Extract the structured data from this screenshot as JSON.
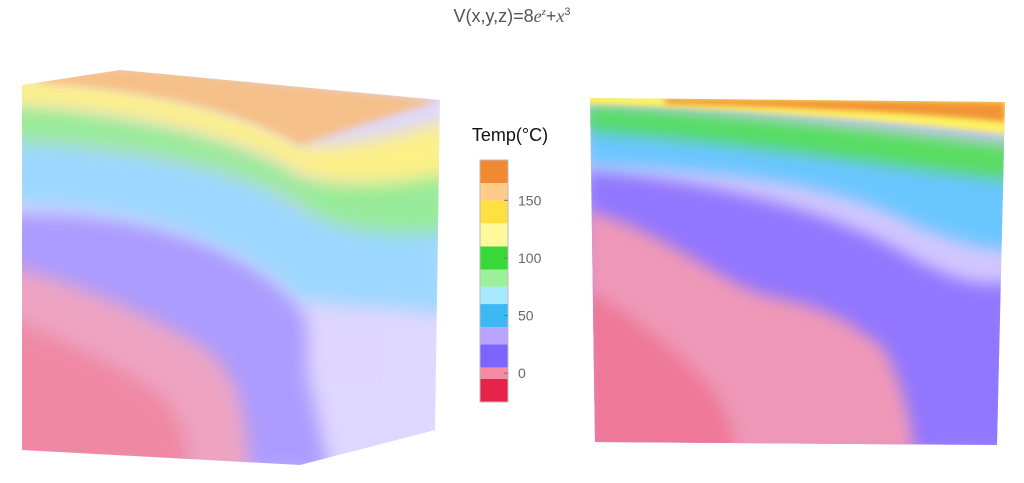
{
  "title": {
    "prefix": "V(x,y,z)=8",
    "base": "e",
    "exp1": "z",
    "mid": "+",
    "var": "x",
    "exp2": "3"
  },
  "chart_data": {
    "type": "heatmap",
    "title": "V(x,y,z)=8e^z+x^3",
    "legend": {
      "title": "Temp(°C)",
      "placement": "center",
      "range": [
        -25,
        185
      ],
      "ticks": [
        0,
        50,
        100,
        150
      ],
      "tick_labels": [
        "0",
        "50",
        "100",
        "150"
      ],
      "color_bands": [
        {
          "from": -25,
          "to": -5,
          "color": "#e8234a"
        },
        {
          "from": -5,
          "to": 5,
          "color": "#f58aa2"
        },
        {
          "from": 5,
          "to": 25,
          "color": "#7d63ff"
        },
        {
          "from": 25,
          "to": 40,
          "color": "#b8a3ff"
        },
        {
          "from": 40,
          "to": 60,
          "color": "#3cb8f5"
        },
        {
          "from": 60,
          "to": 75,
          "color": "#a7e8ff"
        },
        {
          "from": 75,
          "to": 90,
          "color": "#9cf09c"
        },
        {
          "from": 90,
          "to": 110,
          "color": "#38d838"
        },
        {
          "from": 110,
          "to": 130,
          "color": "#fff89a"
        },
        {
          "from": 130,
          "to": 150,
          "color": "#ffe040"
        },
        {
          "from": 150,
          "to": 165,
          "color": "#ffcb8a"
        },
        {
          "from": 165,
          "to": 185,
          "color": "#f08a30"
        }
      ]
    },
    "panels": [
      "3d-volume-view",
      "front-face-view"
    ]
  },
  "colors": {
    "red": "#e8234a",
    "pink": "#f58aa2",
    "purple": "#7d63ff",
    "lavender": "#b8a3ff",
    "cyan": "#3cb8f5",
    "green": "#38d838",
    "yellow": "#ffe040",
    "orange": "#f08a30"
  }
}
